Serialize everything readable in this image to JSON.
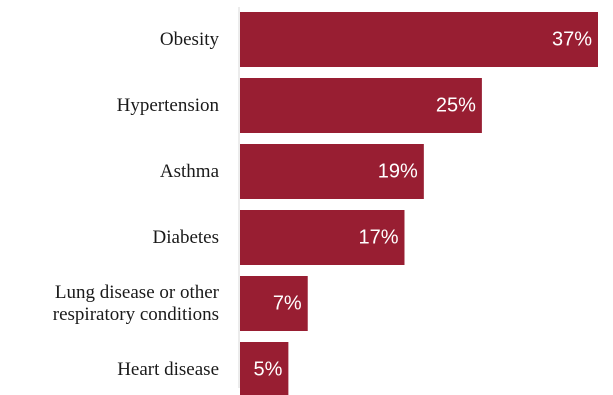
{
  "chart_data": {
    "type": "bar",
    "orientation": "horizontal",
    "categories": [
      "Obesity",
      "Hypertension",
      "Asthma",
      "Diabetes",
      "Lung disease or other respiratory conditions",
      "Heart disease"
    ],
    "category_lines": [
      [
        "Obesity"
      ],
      [
        "Hypertension"
      ],
      [
        "Asthma"
      ],
      [
        "Diabetes"
      ],
      [
        "Lung disease or other",
        "respiratory conditions"
      ],
      [
        "Heart disease"
      ]
    ],
    "values": [
      37,
      25,
      19,
      17,
      7,
      5
    ],
    "value_labels": [
      "37%",
      "25%",
      "19%",
      "17%",
      "7%",
      "5%"
    ],
    "xlim": [
      0,
      37
    ],
    "title": "",
    "xlabel": "",
    "ylabel": "",
    "grid": false,
    "legend": "none",
    "colors": {
      "bar": "#981e32",
      "axis": "#d9d9d9",
      "value_text": "#ffffff",
      "category_text": "#1a1a1a"
    }
  }
}
